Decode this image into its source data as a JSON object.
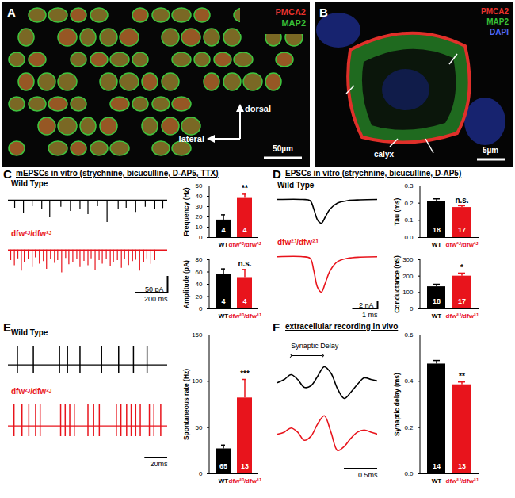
{
  "chart_data": [
    {
      "type": "image",
      "panel": "A",
      "annotations": [
        {
          "text": "PMCA2",
          "color": "#e8322c"
        },
        {
          "text": "MAP2",
          "color": "#38c038"
        },
        {
          "text": "dorsal",
          "color": "#ffffff"
        },
        {
          "text": "lateral",
          "color": "#ffffff"
        },
        {
          "text": "50µm",
          "color": "#ffffff"
        }
      ]
    },
    {
      "type": "image",
      "panel": "B",
      "annotations": [
        {
          "text": "PMCA2",
          "color": "#e8322c"
        },
        {
          "text": "MAP2",
          "color": "#38c038"
        },
        {
          "text": "DAPI",
          "color": "#4f6bff"
        },
        {
          "text": "calyx",
          "color": "#ffffff"
        },
        {
          "text": "5µm",
          "color": "#ffffff"
        }
      ]
    },
    {
      "type": "events",
      "panel": "C",
      "title": "mEPSCs in vitro (strychnine, bicuculline, D-AP5, TTX)",
      "tick_labels": false,
      "xlim": [
        0,
        1000
      ],
      "ylim": [
        -80,
        20
      ],
      "baseline": 0,
      "scale_x": {
        "value": 200,
        "label": "200 ms"
      },
      "scale_y": {
        "value": 50,
        "label": "50 pA"
      },
      "series": [
        {
          "name": "Wild Type",
          "color": "#000000",
          "x": [
            40,
            95,
            150,
            210,
            260,
            330,
            390,
            450,
            500,
            560,
            620,
            690,
            740,
            800,
            860,
            920,
            970
          ],
          "values": [
            -25,
            -40,
            -20,
            -30,
            -55,
            -22,
            -35,
            -28,
            -45,
            -20,
            -70,
            -30,
            -25,
            -38,
            -22,
            -30,
            -26
          ]
        },
        {
          "name": "dfw²ᴶ/dfw²ᴶ",
          "color": "#e8141c",
          "x": [
            15,
            38,
            60,
            82,
            100,
            125,
            150,
            170,
            195,
            220,
            240,
            265,
            290,
            310,
            335,
            360,
            380,
            405,
            430,
            450,
            475,
            500,
            520,
            545,
            570,
            590,
            615,
            640,
            660,
            685,
            710,
            730,
            755,
            780,
            800,
            825,
            850,
            870,
            895,
            920
          ],
          "values": [
            -30,
            -45,
            -25,
            -60,
            -35,
            -28,
            -50,
            -22,
            -40,
            -33,
            -55,
            -26,
            -38,
            -30,
            -65,
            -24,
            -42,
            -35,
            -28,
            -50,
            -32,
            -45,
            -25,
            -58,
            -30,
            -40,
            -27,
            -48,
            -35,
            -30,
            -52,
            -26,
            -44,
            -33,
            -29,
            -60,
            -36,
            -25,
            -41,
            -30
          ]
        }
      ]
    },
    {
      "type": "bar",
      "y_label": "Frequency (Hz)",
      "categories": [
        "WT",
        "dfw²ᴶ/dfw²ᴶ"
      ],
      "values": [
        17,
        38
      ],
      "errors": [
        5,
        4
      ],
      "n": [
        4,
        4
      ],
      "significance": [
        null,
        "**"
      ],
      "colors": [
        "#000000",
        "#e8141c"
      ],
      "ylim": [
        0,
        50
      ],
      "yticks": [
        0,
        10,
        20,
        30,
        40,
        50
      ]
    },
    {
      "type": "bar",
      "y_label": "Amplitude (pA)",
      "categories": [
        "WT",
        "dfw²ᴶ/dfw²ᴶ"
      ],
      "values": [
        56,
        51
      ],
      "errors": [
        9,
        13
      ],
      "n": [
        4,
        4
      ],
      "significance": [
        null,
        "n.s."
      ],
      "colors": [
        "#000000",
        "#e8141c"
      ],
      "ylim": [
        0,
        80
      ],
      "yticks": [
        0,
        20,
        40,
        60,
        80
      ]
    },
    {
      "type": "line",
      "panel": "D",
      "title": "EPSCs in vitro (strychnine, bicuculline, D-AP5)",
      "tick_labels": false,
      "xlim": [
        0,
        4
      ],
      "ylim": [
        -9,
        1
      ],
      "scale_x": {
        "value": 1,
        "label": "1 ms"
      },
      "scale_y": {
        "value": 2,
        "label": "2 nA"
      },
      "series": [
        {
          "name": "Wild Type",
          "color": "#000000",
          "x": [
            0,
            1.0,
            1.3,
            1.45,
            1.6,
            1.75,
            1.9,
            2.1,
            2.4,
            2.8,
            3.3,
            4
          ],
          "values": [
            0,
            0,
            -0.3,
            -2.5,
            -5.2,
            -6.0,
            -4.5,
            -2.4,
            -0.9,
            -0.3,
            -0.1,
            0
          ]
        },
        {
          "name": "dfw²ᴶ/dfw²ᴶ",
          "color": "#e8141c",
          "x": [
            0,
            1.0,
            1.3,
            1.45,
            1.6,
            1.75,
            1.9,
            2.1,
            2.4,
            2.8,
            3.3,
            4
          ],
          "values": [
            0,
            0,
            -0.4,
            -3.5,
            -7.5,
            -8.6,
            -6.5,
            -3.4,
            -1.2,
            -0.4,
            -0.1,
            0
          ]
        }
      ]
    },
    {
      "type": "bar",
      "y_label": "Tau (ms)",
      "categories": [
        "WT",
        "dfw²ᴶ/dfw²ᴶ"
      ],
      "values": [
        0.21,
        0.175
      ],
      "errors": [
        0.015,
        0.01
      ],
      "n": [
        18,
        17
      ],
      "significance": [
        null,
        "n.s."
      ],
      "colors": [
        "#000000",
        "#e8141c"
      ],
      "ylim": [
        0,
        0.3
      ],
      "yticks": [
        {
          "value": 0,
          "label": "0.0"
        },
        0.1,
        0.2,
        0.3
      ]
    },
    {
      "type": "bar",
      "y_label": "Conductance (nS)",
      "categories": [
        "WT",
        "dfw²ᴶ/dfw²ᴶ"
      ],
      "values": [
        135,
        200
      ],
      "errors": [
        15,
        18
      ],
      "n": [
        18,
        17
      ],
      "significance": [
        null,
        "*"
      ],
      "colors": [
        "#000000",
        "#e8141c"
      ],
      "ylim": [
        0,
        300
      ],
      "yticks": [
        0,
        100,
        200,
        300
      ]
    },
    {
      "type": "spikes",
      "panel": "E",
      "tick_labels": false,
      "xlim": [
        0,
        140
      ],
      "scale_x": {
        "value": 20,
        "label": "20ms"
      },
      "series": [
        {
          "name": "Wild Type",
          "color": "#000000",
          "x": [
            8,
            22,
            45,
            52,
            63,
            82,
            97,
            110,
            122
          ]
        },
        {
          "name": "dfw²ᴶ/dfw²ᴶ",
          "color": "#e8141c",
          "x": [
            5,
            12,
            18,
            24,
            28,
            46,
            50,
            54,
            58,
            70,
            75,
            80,
            95,
            99,
            104,
            108,
            112,
            116,
            124,
            128,
            134
          ]
        }
      ]
    },
    {
      "type": "bar",
      "y_label": "Spontaneous rate (Hz)",
      "categories": [
        "WT",
        "dfw²ᴶ/dfw²ᴶ"
      ],
      "values": [
        27,
        82
      ],
      "errors": [
        4,
        20
      ],
      "n": [
        65,
        13
      ],
      "significance": [
        null,
        "***"
      ],
      "colors": [
        "#000000",
        "#e8141c"
      ],
      "ylim": [
        0,
        150
      ],
      "yticks": [
        0,
        50,
        100,
        150
      ]
    },
    {
      "type": "line",
      "panel": "F",
      "title": "extracellular recording in vivo",
      "tick_labels": false,
      "xlim": [
        0,
        1.5
      ],
      "ylim": [
        -1.2,
        1.2
      ],
      "scale_x": {
        "value": 0.5,
        "label": "0.5ms"
      },
      "annotations": [
        "Synaptic Delay"
      ],
      "arrow": [
        0.2,
        0.68
      ],
      "series": [
        {
          "color": "#000000",
          "x": [
            0,
            0.1,
            0.2,
            0.3,
            0.4,
            0.5,
            0.6,
            0.7,
            0.8,
            0.9,
            1.0,
            1.1,
            1.2,
            1.3,
            1.4,
            1.5
          ],
          "values": [
            0,
            0.2,
            0.5,
            0.2,
            -0.3,
            -0.2,
            0.4,
            1.0,
            0.6,
            -0.4,
            -1.0,
            -0.6,
            -0.1,
            0.3,
            0.2,
            0.1
          ]
        },
        {
          "color": "#e8141c",
          "x": [
            0,
            0.1,
            0.2,
            0.3,
            0.4,
            0.5,
            0.6,
            0.7,
            0.8,
            0.9,
            1.0,
            1.1,
            1.2,
            1.3,
            1.4,
            1.5
          ],
          "values": [
            0,
            0.1,
            0.3,
            0.1,
            -0.3,
            -0.1,
            0.5,
            0.9,
            0.1,
            -0.8,
            -0.6,
            -0.2,
            0.1,
            0.2,
            0.1,
            0
          ]
        }
      ]
    },
    {
      "type": "bar",
      "y_label": "Synaptic delay (ms)",
      "categories": [
        "WT",
        "dfw²ᴶ/dfw²ᴶ"
      ],
      "values": [
        0.475,
        0.385
      ],
      "errors": [
        0.015,
        0.012
      ],
      "n": [
        14,
        13
      ],
      "significance": [
        null,
        "**"
      ],
      "colors": [
        "#000000",
        "#e8141c"
      ],
      "ylim": [
        0,
        0.6
      ],
      "yticks": [
        {
          "value": 0,
          "label": "0.0"
        },
        0.2,
        0.4,
        0.6
      ]
    }
  ]
}
